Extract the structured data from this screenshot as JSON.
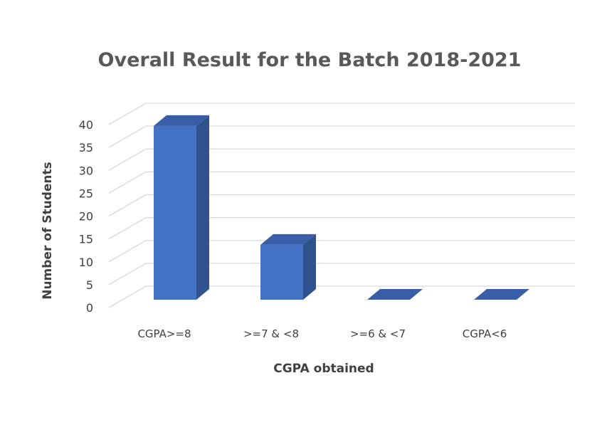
{
  "chart_data": {
    "type": "bar",
    "title": "Overall Result for the Batch 2018-2021",
    "xlabel": "CGPA obtained",
    "ylabel": "Number of Students",
    "categories": [
      "CGPA>=8",
      ">=7 & <8",
      ">=6 & <7",
      "CGPA<6"
    ],
    "values": [
      38,
      12,
      0,
      0
    ],
    "ylim": [
      0,
      40
    ],
    "yticks": [
      "0",
      "5",
      "10",
      "15",
      "20",
      "25",
      "30",
      "35",
      "40"
    ],
    "grid": true,
    "legend": "none",
    "three_d": true,
    "colors": {
      "bar_front": "#4472C4",
      "bar_side": "#2F528F",
      "bar_top": "#3A5DA8",
      "grid": "#D9D9D9"
    }
  }
}
